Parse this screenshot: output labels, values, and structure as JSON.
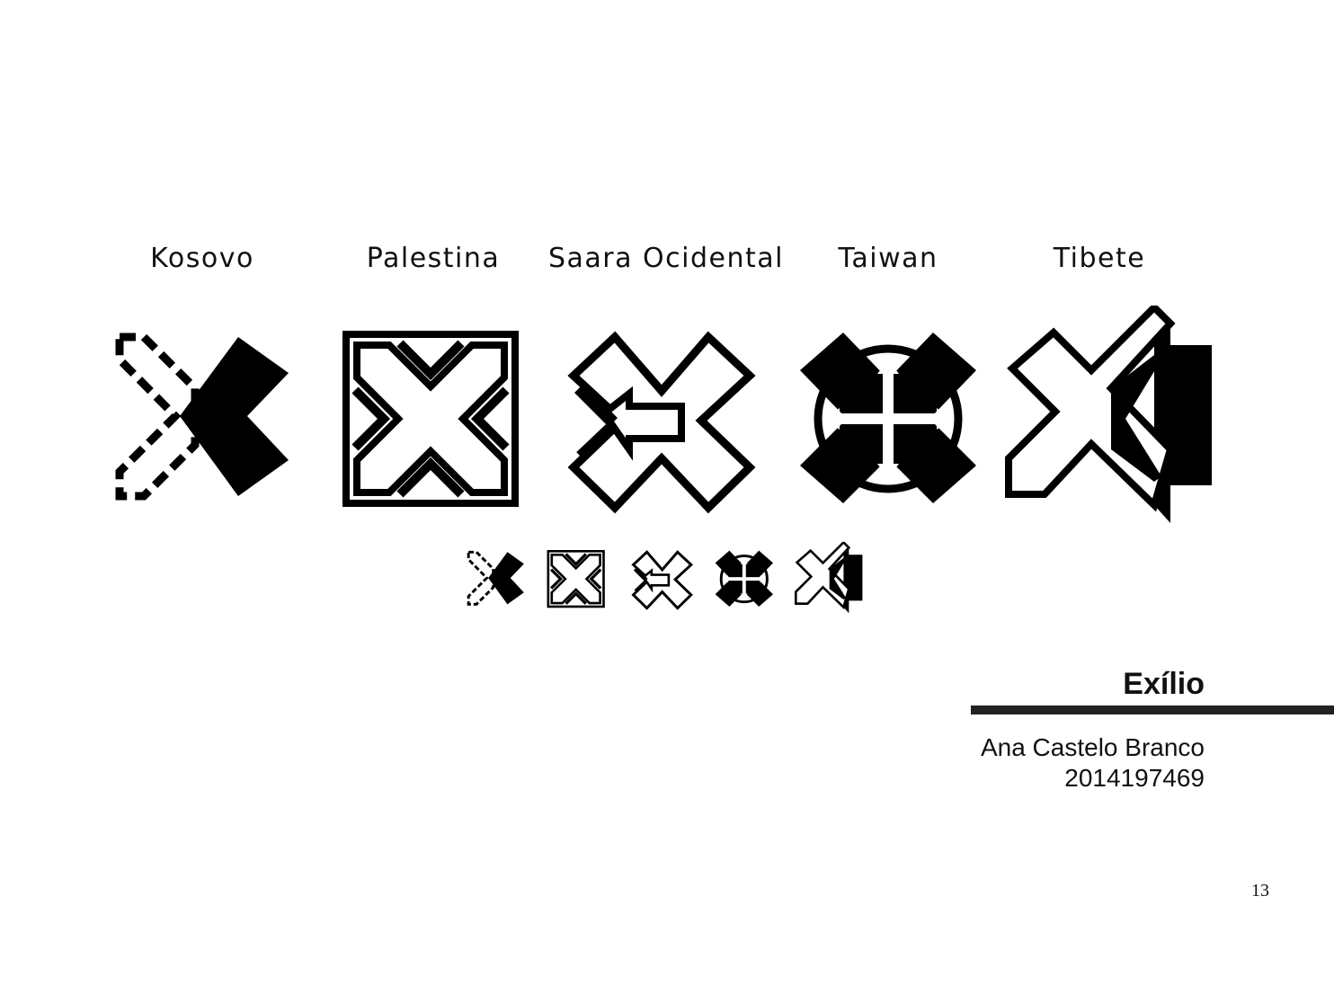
{
  "symbols": [
    {
      "label": "Kosovo",
      "icon": "kosovo-x-icon"
    },
    {
      "label": "Palestina",
      "icon": "palestina-x-icon"
    },
    {
      "label": "Saara Ocidental",
      "icon": "saara-ocidental-x-icon"
    },
    {
      "label": "Taiwan",
      "icon": "taiwan-x-icon"
    },
    {
      "label": "Tibete",
      "icon": "tibete-x-icon"
    }
  ],
  "project": {
    "title": "Exílio",
    "author": "Ana Castelo Branco",
    "student_number": "2014197469"
  },
  "page_number": "13",
  "colors": {
    "ink": "#000000",
    "rule": "#222222",
    "background": "#ffffff"
  }
}
